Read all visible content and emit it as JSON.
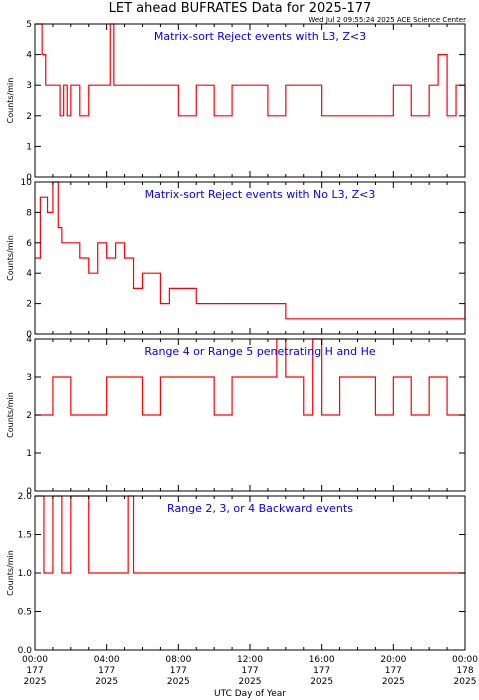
{
  "page": {
    "title": "LET ahead BUFRATES Data for 2025-177",
    "stamp": "Wed Jul  2 09:55:24 2025 ACE Science Center",
    "x_axis_label": "UTC Day of Year"
  },
  "colors": {
    "data": "#ff0000",
    "panel_title": "#0000ff",
    "axes": "#000000"
  },
  "x_ticks": [
    {
      "time": "00:00",
      "doy": "177",
      "year": "2025"
    },
    {
      "time": "04:00",
      "doy": "177",
      "year": "2025"
    },
    {
      "time": "08:00",
      "doy": "177",
      "year": "2025"
    },
    {
      "time": "12:00",
      "doy": "177",
      "year": "2025"
    },
    {
      "time": "16:00",
      "doy": "177",
      "year": "2025"
    },
    {
      "time": "20:00",
      "doy": "177",
      "year": "2025"
    },
    {
      "time": "00:00",
      "doy": "178",
      "year": "2025"
    }
  ],
  "chart_data": [
    {
      "type": "line",
      "title": "Matrix-sort Reject events with L3, Z<3",
      "ylabel": "Counts/min",
      "xlim_hours": [
        0,
        24
      ],
      "ylim": [
        0,
        5
      ],
      "yticks": [
        "0",
        "1",
        "2",
        "3",
        "4",
        "5"
      ],
      "x_hours": [
        0.0,
        0.2,
        0.4,
        0.6,
        0.8,
        1.0,
        1.2,
        1.4,
        1.6,
        1.8,
        2.0,
        2.5,
        3.0,
        3.5,
        4.0,
        4.2,
        4.4,
        5.0,
        6.0,
        7.0,
        8.0,
        9.0,
        10.0,
        11.0,
        12.0,
        13.0,
        14.0,
        15.0,
        16.0,
        17.0,
        18.0,
        19.0,
        20.0,
        21.0,
        22.0,
        22.5,
        23.0,
        23.5,
        24.0
      ],
      "values": [
        5,
        5,
        4,
        3,
        3,
        3,
        3,
        2,
        3,
        2,
        3,
        2,
        3,
        3,
        3,
        5,
        3,
        3,
        3,
        3,
        2,
        3,
        2,
        3,
        3,
        2,
        3,
        3,
        2,
        2,
        2,
        2,
        3,
        2,
        3,
        4,
        2,
        3,
        2
      ]
    },
    {
      "type": "line",
      "title": "Matrix-sort Reject events with No L3, Z<3",
      "ylabel": "Counts/min",
      "xlim_hours": [
        0,
        24
      ],
      "ylim": [
        0,
        10
      ],
      "yticks": [
        "0",
        "2",
        "4",
        "6",
        "8",
        "10"
      ],
      "x_hours": [
        0.0,
        0.3,
        0.5,
        0.7,
        1.0,
        1.3,
        1.5,
        2.0,
        2.5,
        3.0,
        3.5,
        4.0,
        4.5,
        5.0,
        5.5,
        6.0,
        6.5,
        7.0,
        7.5,
        8.0,
        9.0,
        10.0,
        11.0,
        12.0,
        13.0,
        14.0,
        15.0,
        16.0,
        17.0,
        18.0,
        19.0,
        20.0,
        21.0,
        22.0,
        23.0,
        24.0
      ],
      "values": [
        5,
        9,
        9,
        8,
        10,
        7,
        6,
        6,
        5,
        4,
        6,
        5,
        6,
        5,
        3,
        4,
        4,
        2,
        3,
        3,
        2,
        2,
        2,
        2,
        2,
        1,
        1,
        1,
        1,
        1,
        1,
        1,
        1,
        1,
        1,
        2
      ]
    },
    {
      "type": "line",
      "title": "Range 4 or Range 5 penetrating H and He",
      "ylabel": "Counts/min",
      "xlim_hours": [
        0,
        24
      ],
      "ylim": [
        0,
        4
      ],
      "yticks": [
        "0",
        "1",
        "2",
        "3",
        "4"
      ],
      "x_hours": [
        0.0,
        1.0,
        2.0,
        3.0,
        4.0,
        5.0,
        6.0,
        7.0,
        8.0,
        9.0,
        10.0,
        11.0,
        12.0,
        13.0,
        13.5,
        14.0,
        15.0,
        15.5,
        16.0,
        17.0,
        18.0,
        19.0,
        20.0,
        21.0,
        22.0,
        23.0,
        24.0
      ],
      "values": [
        2,
        3,
        2,
        2,
        3,
        3,
        2,
        3,
        3,
        3,
        2,
        3,
        3,
        3,
        4,
        3,
        2,
        4,
        2,
        3,
        3,
        2,
        3,
        2,
        3,
        2,
        2
      ]
    },
    {
      "type": "line",
      "title": "Range 2, 3, or 4 Backward events",
      "ylabel": "Counts/min",
      "xlim_hours": [
        0,
        24
      ],
      "ylim": [
        0,
        2
      ],
      "yticks": [
        "0.0",
        "0.5",
        "1.0",
        "1.5",
        "2.0"
      ],
      "x_hours": [
        0.0,
        0.5,
        1.0,
        1.5,
        2.0,
        2.5,
        3.0,
        3.5,
        4.0,
        4.5,
        5.0,
        5.2,
        5.5,
        6.0,
        7.0,
        8.0,
        9.0,
        10.0,
        11.0,
        12.0,
        13.0,
        14.0,
        15.0,
        16.0,
        17.0,
        18.0,
        19.0,
        20.0,
        21.0,
        22.0,
        23.0,
        24.0
      ],
      "values": [
        2,
        1,
        2,
        1,
        2,
        2,
        1,
        1,
        1,
        1,
        1,
        2,
        1,
        1,
        1,
        1,
        1,
        1,
        1,
        1,
        1,
        1,
        1,
        1,
        1,
        1,
        1,
        1,
        1,
        1,
        1,
        1
      ]
    }
  ]
}
